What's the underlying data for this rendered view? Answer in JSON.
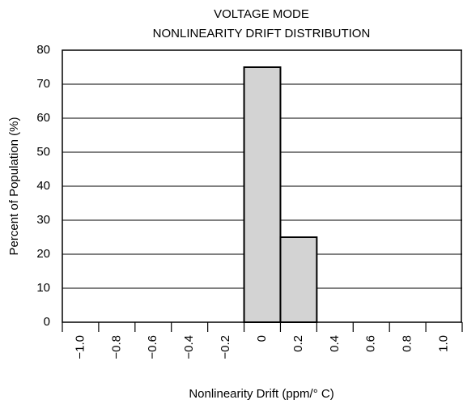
{
  "chart_data": {
    "type": "histogram",
    "title": "VOLTAGE MODE",
    "subtitle": "NONLINEARITY DRIFT DISTRIBUTION",
    "x_label": "Nonlinearity Drift (ppm/° C)",
    "y_label": "Percent of Population (%)",
    "bins": [
      -1.1,
      -0.9,
      -0.7,
      -0.5,
      -0.3,
      -0.1,
      0.1,
      0.3,
      0.5,
      0.7,
      0.9,
      1.1
    ],
    "values": [
      0,
      0,
      0,
      0,
      0,
      75,
      25,
      0,
      0,
      0,
      0
    ],
    "color": "#d3d3d3",
    "xlim": [
      -1.1,
      1.1
    ],
    "xticks": [
      {
        "value": -1.0,
        "label": "−1.0"
      },
      {
        "value": -0.8,
        "label": "−0.8"
      },
      {
        "value": -0.6,
        "label": "−0.6"
      },
      {
        "value": -0.4,
        "label": "−0.4"
      },
      {
        "value": -0.2,
        "label": "−0.2"
      },
      0,
      0.2,
      0.4,
      0.6,
      0.8,
      {
        "value": 1.0,
        "label": "1.0"
      }
    ],
    "ylim": [
      0,
      80
    ],
    "yticks": [
      0,
      10,
      20,
      30,
      40,
      50,
      60,
      70,
      80
    ],
    "grid": true
  }
}
